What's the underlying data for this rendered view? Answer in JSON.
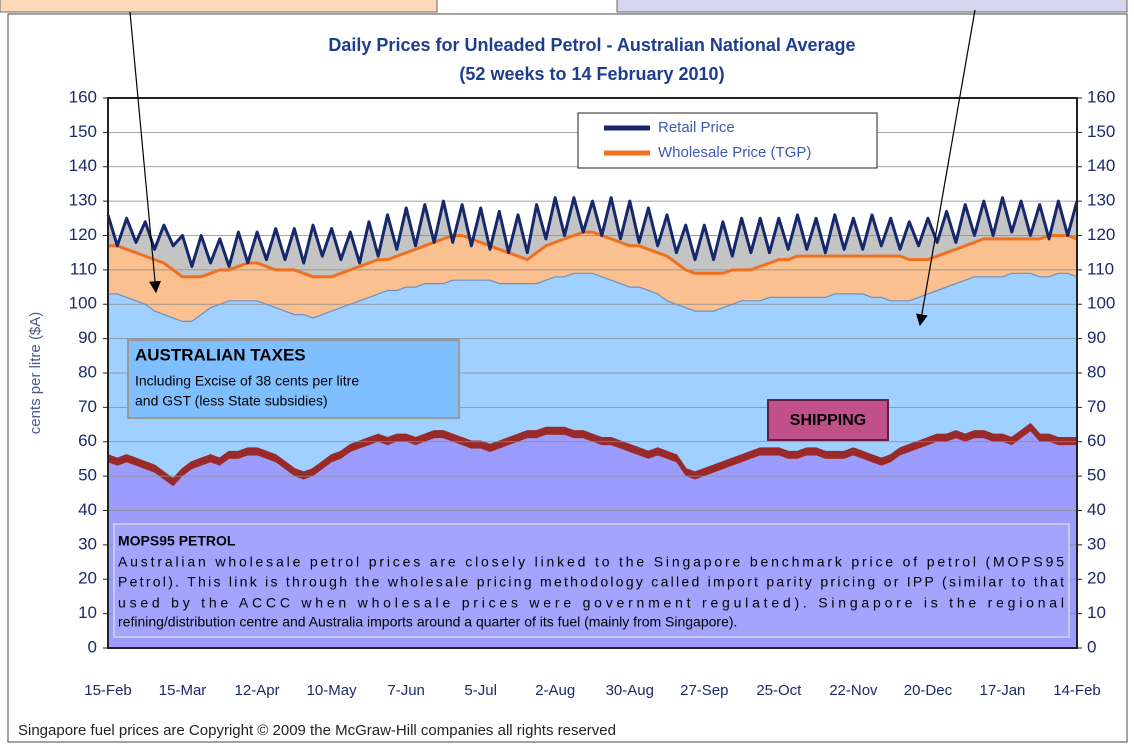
{
  "chart_data": {
    "type": "area",
    "title": "Daily Prices for Unleaded Petrol - Australian National Average",
    "subtitle": "(52 weeks to 14 February 2010)",
    "ylabel": "cents per litre ($A)",
    "footnote": "Singapore fuel prices are Copyright © 2009 the McGraw-Hill companies all rights reserved",
    "categories": [
      "15-Feb",
      null,
      null,
      null,
      null,
      null,
      null,
      null,
      "15-Mar",
      null,
      null,
      null,
      null,
      null,
      null,
      null,
      "12-Apr",
      null,
      null,
      null,
      null,
      null,
      null,
      null,
      "10-May",
      null,
      null,
      null,
      null,
      null,
      null,
      null,
      "7-Jun",
      null,
      null,
      null,
      null,
      null,
      null,
      null,
      "5-Jul",
      null,
      null,
      null,
      null,
      null,
      null,
      null,
      "2-Aug",
      null,
      null,
      null,
      null,
      null,
      null,
      null,
      "30-Aug",
      null,
      null,
      null,
      null,
      null,
      null,
      null,
      "27-Sep",
      null,
      null,
      null,
      null,
      null,
      null,
      null,
      "25-Oct",
      null,
      null,
      null,
      null,
      null,
      null,
      null,
      "22-Nov",
      null,
      null,
      null,
      null,
      null,
      null,
      null,
      "20-Dec",
      null,
      null,
      null,
      null,
      null,
      null,
      null,
      "17-Jan",
      null,
      null,
      null,
      null,
      null,
      null,
      null,
      "14-Feb"
    ],
    "series": [
      {
        "name": "Retail Price",
        "color": "#14286b",
        "fill": "#c4c4c4",
        "values": [
          126,
          117,
          125,
          118,
          124,
          116,
          123,
          117,
          120,
          111,
          120,
          112,
          119,
          111,
          121,
          112,
          121,
          113,
          122,
          113,
          122,
          112,
          123,
          114,
          122,
          113,
          121,
          112,
          124,
          114,
          126,
          116,
          128,
          117,
          129,
          118,
          130,
          118,
          129,
          117,
          128,
          116,
          127,
          115,
          126,
          115,
          129,
          119,
          131,
          120,
          131,
          121,
          130,
          120,
          131,
          119,
          130,
          118,
          128,
          117,
          126,
          115,
          123,
          113,
          123,
          113,
          124,
          114,
          125,
          115,
          125,
          115,
          125,
          116,
          126,
          116,
          125,
          115,
          126,
          116,
          125,
          116,
          126,
          117,
          125,
          116,
          124,
          117,
          125,
          118,
          127,
          118,
          129,
          120,
          130,
          120,
          131,
          121,
          130,
          120,
          129,
          119,
          130,
          120,
          130
        ]
      },
      {
        "name": "Wholesale Price (TGP)",
        "color": "#f07020",
        "fill": "#fbc08f",
        "values": [
          117,
          117,
          116,
          115,
          114,
          113,
          112,
          110,
          108,
          108,
          108,
          109,
          110,
          110,
          111,
          112,
          112,
          111,
          110,
          110,
          110,
          109,
          108,
          108,
          108,
          109,
          110,
          111,
          112,
          113,
          113,
          114,
          115,
          116,
          117,
          118,
          119,
          120,
          120,
          119,
          118,
          117,
          116,
          115,
          114,
          113,
          115,
          117,
          118,
          119,
          120,
          121,
          121,
          120,
          119,
          118,
          117,
          117,
          116,
          115,
          114,
          112,
          110,
          109,
          109,
          109,
          109,
          110,
          110,
          110,
          111,
          112,
          113,
          113,
          114,
          114,
          114,
          114,
          114,
          114,
          114,
          114,
          114,
          114,
          114,
          114,
          113,
          113,
          113,
          114,
          115,
          116,
          117,
          118,
          119,
          119,
          119,
          119,
          119,
          119,
          119,
          120,
          120,
          120,
          119
        ]
      }
    ],
    "areas": [
      {
        "name": "MOPS95 PETROL",
        "color": "#9c9cff",
        "note": [
          "Australian wholesale petrol prices are closely linked to the Singapore benchmark price of petrol (MOPS95",
          "Petrol).  This link is through the wholesale pricing methodology called import parity pricing or IPP (similar to that",
          "used by the ACCC when wholesale prices were government regulated). Singapore is the regional",
          "refining/distribution centre and  Australia imports around a quarter of its fuel (mainly from Singapore)."
        ],
        "values": [
          54,
          53,
          54,
          53,
          52,
          51,
          49,
          47,
          50,
          52,
          53,
          54,
          53,
          55,
          55,
          56,
          56,
          55,
          54,
          52,
          50,
          49,
          50,
          52,
          54,
          55,
          57,
          58,
          59,
          60,
          59,
          60,
          60,
          59,
          60,
          61,
          61,
          60,
          59,
          58,
          58,
          57,
          58,
          59,
          60,
          61,
          61,
          62,
          62,
          62,
          61,
          61,
          60,
          59,
          59,
          58,
          57,
          56,
          55,
          56,
          55,
          54,
          50,
          49,
          50,
          51,
          52,
          53,
          54,
          55,
          56,
          56,
          56,
          55,
          55,
          56,
          56,
          55,
          55,
          55,
          56,
          55,
          54,
          53,
          54,
          56,
          57,
          58,
          59,
          60,
          60,
          61,
          60,
          61,
          61,
          60,
          60,
          59,
          61,
          63,
          60,
          60,
          59,
          59,
          59
        ]
      },
      {
        "name": "SHIPPING",
        "color": "#9a2a2a",
        "values": [
          2,
          2,
          2,
          2,
          2,
          2,
          2,
          2,
          2,
          2,
          2,
          2,
          2,
          2,
          2,
          2,
          2,
          2,
          2,
          2,
          2,
          2,
          2,
          2,
          2,
          2,
          2,
          2,
          2,
          2,
          2,
          2,
          2,
          2,
          2,
          2,
          2,
          2,
          2,
          2,
          2,
          2,
          2,
          2,
          2,
          2,
          2,
          2,
          2,
          2,
          2,
          2,
          2,
          2,
          2,
          2,
          2,
          2,
          2,
          2,
          2,
          2,
          2,
          2,
          2,
          2,
          2,
          2,
          2,
          2,
          2,
          2,
          2,
          2,
          2,
          2,
          2,
          2,
          2,
          2,
          2,
          2,
          2,
          2,
          2,
          2,
          2,
          2,
          2,
          2,
          2,
          2,
          2,
          2,
          2,
          2,
          2,
          2,
          2,
          2,
          2,
          2,
          2,
          2,
          2
        ]
      },
      {
        "name": "AUSTRALIAN TAXES",
        "color": "#9fd0ff",
        "note": [
          "Including Excise of 38 cents per litre",
          "and GST (less State subsidies)"
        ],
        "values": [
          47,
          48,
          46,
          46,
          46,
          45,
          46,
          47,
          43,
          41,
          42,
          43,
          45,
          44,
          44,
          43,
          43,
          43,
          43,
          44,
          45,
          46,
          44,
          43,
          42,
          42,
          41,
          41,
          41,
          41,
          43,
          42,
          43,
          44,
          44,
          43,
          43,
          45,
          46,
          47,
          47,
          48,
          46,
          45,
          44,
          43,
          43,
          43,
          44,
          44,
          46,
          46,
          47,
          47,
          46,
          46,
          46,
          47,
          47,
          45,
          44,
          44,
          47,
          47,
          46,
          45,
          45,
          45,
          45,
          44,
          43,
          44,
          44,
          45,
          45,
          44,
          44,
          45,
          46,
          46,
          45,
          46,
          46,
          47,
          45,
          43,
          42,
          42,
          42,
          42,
          43,
          43,
          45,
          45,
          45,
          46,
          46,
          48,
          46,
          44,
          46,
          46,
          48,
          48,
          47
        ]
      }
    ],
    "ylim": [
      0,
      160
    ],
    "yticks": [
      0,
      10,
      20,
      30,
      40,
      50,
      60,
      70,
      80,
      90,
      100,
      110,
      120,
      130,
      140,
      150,
      160
    ],
    "y2lim": [
      0,
      160
    ],
    "y2ticks": [
      0,
      10,
      20,
      30,
      40,
      50,
      60,
      70,
      80,
      90,
      100,
      110,
      120,
      130,
      140,
      150,
      160
    ],
    "grid": true
  }
}
